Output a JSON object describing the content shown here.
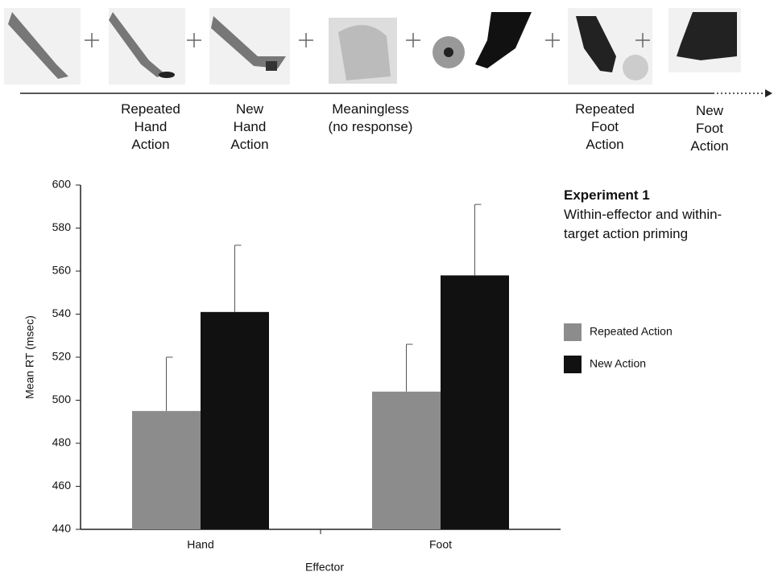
{
  "sequence_labels": [
    "Repeated\nHand\nAction",
    "New\nHand\nAction",
    "Meaningless\n(no response)",
    "Repeated\nFoot\nAction",
    "New\nFoot\nAction"
  ],
  "chart_data": {
    "type": "bar",
    "annotation_title": "Experiment 1",
    "annotation": "Within-effector and within-target action priming",
    "x_label": "Effector",
    "y_label": "Mean RT (msec)",
    "categories": [
      "Hand",
      "Foot"
    ],
    "series": [
      {
        "name": "Repeated Action",
        "color": "#8c8c8c",
        "values": [
          495,
          504
        ],
        "errors": [
          25,
          22
        ]
      },
      {
        "name": "New Action",
        "color": "#111111",
        "values": [
          541,
          558
        ],
        "errors": [
          31,
          33
        ]
      }
    ],
    "ylim": [
      440,
      600
    ],
    "yticks": [
      440,
      460,
      480,
      500,
      520,
      540,
      560,
      580,
      600
    ]
  }
}
